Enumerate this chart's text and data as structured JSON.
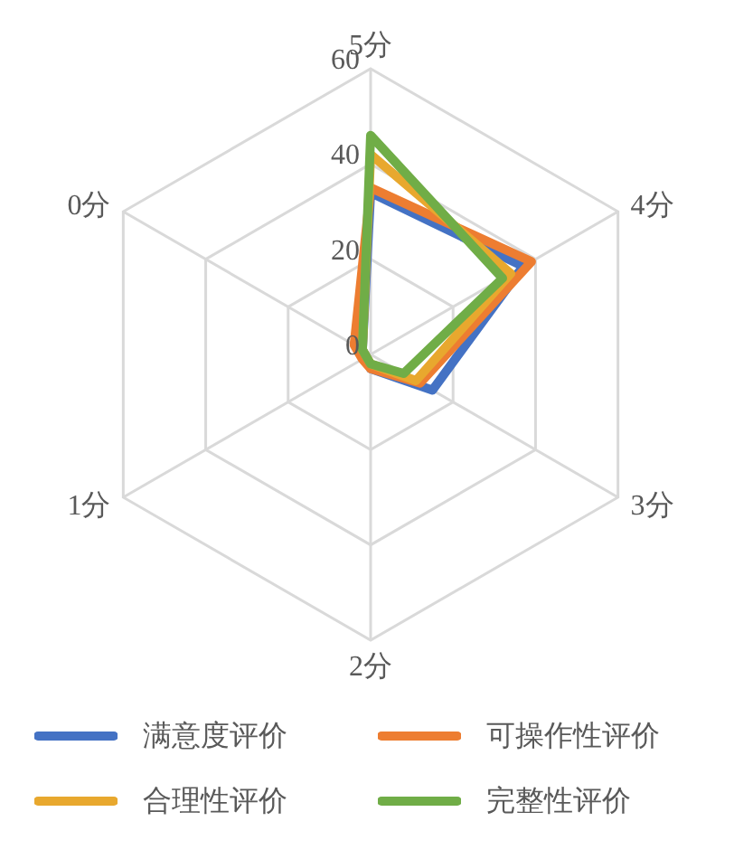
{
  "chart_data": {
    "type": "radar",
    "categories": [
      "5分",
      "4分",
      "3分",
      "2分",
      "1分",
      "0分"
    ],
    "ylim": [
      0,
      60
    ],
    "yticks": [
      0,
      20,
      40,
      60
    ],
    "grid": true,
    "legend": "bottom",
    "marker": "none",
    "series": [
      {
        "name": "满意度评价",
        "color": "#4472c4",
        "values": [
          34,
          37,
          15,
          3,
          1,
          2
        ]
      },
      {
        "name": "可操作性评价",
        "color": "#ed7d31",
        "values": [
          35,
          39,
          12,
          3,
          2,
          4
        ]
      },
      {
        "name": "合理性评价",
        "color": "#e8a82e",
        "values": [
          42,
          34,
          11,
          2,
          1,
          2
        ]
      },
      {
        "name": "完整性评价",
        "color": "#70ad47",
        "values": [
          46,
          32,
          8,
          2,
          1,
          2
        ]
      }
    ]
  }
}
